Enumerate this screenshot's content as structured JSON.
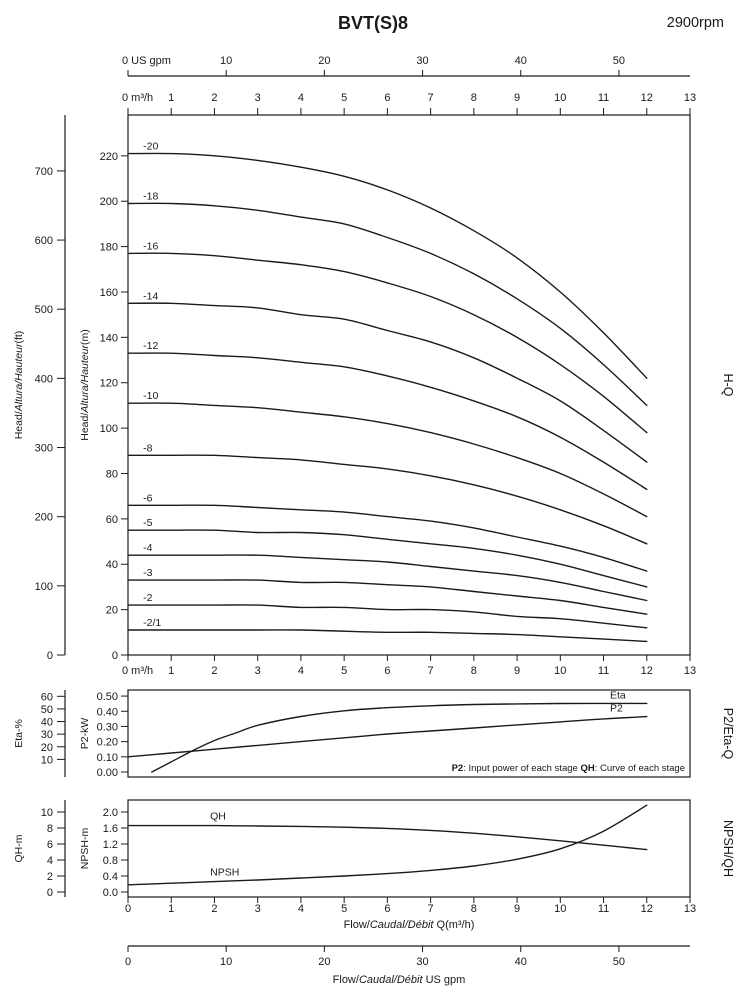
{
  "header": {
    "title": "BVT(S)8",
    "rpm": "2900rpm"
  },
  "colors": {
    "ink": "#1a1a1a",
    "background": "#ffffff"
  },
  "axes": {
    "gpm_top": {
      "zero_label": "0 US gpm",
      "ticks": [
        10,
        20,
        30,
        40,
        50
      ]
    },
    "m3h_top": {
      "zero_label": "0 m³/h",
      "ticks": [
        1,
        2,
        3,
        4,
        5,
        6,
        7,
        8,
        9,
        10,
        11,
        12,
        13
      ]
    },
    "m3h_mid": {
      "zero_label": "0 m³/h",
      "ticks": [
        1,
        2,
        3,
        4,
        5,
        6,
        7,
        8,
        9,
        10,
        11,
        12,
        13
      ]
    },
    "gpm_bottom": {
      "ticks": [
        0,
        10,
        20,
        30,
        40,
        50
      ],
      "label_parts": [
        {
          "text": "Flow/"
        },
        {
          "text": "Caudal/Débit",
          "italic": true
        },
        {
          "text": "  US gpm"
        }
      ]
    }
  },
  "chart_data": [
    {
      "type": "line",
      "name": "H-Q",
      "right_label": "H-Q",
      "xlim": [
        0,
        13
      ],
      "ylim_m": [
        0,
        238
      ],
      "ylabel_m_parts": [
        {
          "text": "Head/"
        },
        {
          "text": "Altura/Hauteur",
          "italic": true
        },
        {
          "text": "(m)"
        }
      ],
      "ylabel_ft_parts": [
        {
          "text": "Head/"
        },
        {
          "text": "Altura/Hauteur",
          "italic": true
        },
        {
          "text": "(ft)"
        }
      ],
      "yticks_m": [
        0,
        20,
        40,
        60,
        80,
        100,
        120,
        140,
        160,
        180,
        200,
        220
      ],
      "yticks_ft": [
        0,
        100,
        200,
        300,
        400,
        500,
        600,
        700
      ],
      "x": [
        0,
        1,
        2,
        3,
        4,
        5,
        6,
        7,
        8,
        9,
        10,
        11,
        12
      ],
      "series": [
        {
          "label": "-20",
          "values": [
            221,
            221,
            220,
            218,
            215,
            211,
            205,
            197,
            187,
            175,
            160,
            142,
            122
          ]
        },
        {
          "label": "-18",
          "values": [
            199,
            199,
            198,
            196,
            193,
            190,
            184,
            177,
            168,
            157,
            144,
            128,
            110
          ]
        },
        {
          "label": "-16",
          "values": [
            177,
            177,
            176,
            174,
            172,
            169,
            164,
            158,
            150,
            140,
            128,
            114,
            98
          ]
        },
        {
          "label": "-14",
          "values": [
            155,
            155,
            154,
            153,
            150,
            148,
            143,
            138,
            131,
            122,
            112,
            99,
            85
          ]
        },
        {
          "label": "-12",
          "values": [
            133,
            133,
            132,
            131,
            129,
            127,
            123,
            118,
            112,
            105,
            96,
            85,
            73
          ]
        },
        {
          "label": "-10",
          "values": [
            111,
            111,
            110,
            109,
            107,
            105,
            102,
            98,
            93,
            87,
            80,
            71,
            61
          ]
        },
        {
          "label": "-8",
          "values": [
            88,
            88,
            88,
            87,
            86,
            84,
            82,
            79,
            75,
            70,
            64,
            57,
            49
          ]
        },
        {
          "label": "-6",
          "values": [
            66,
            66,
            66,
            65,
            64,
            63,
            61,
            59,
            56,
            52,
            48,
            43,
            37
          ]
        },
        {
          "label": "-5",
          "values": [
            55,
            55,
            55,
            54,
            54,
            53,
            51,
            49,
            47,
            44,
            40,
            35,
            30
          ]
        },
        {
          "label": "-4",
          "values": [
            44,
            44,
            44,
            44,
            43,
            42,
            41,
            39,
            37,
            35,
            32,
            28,
            24
          ]
        },
        {
          "label": "-3",
          "values": [
            33,
            33,
            33,
            33,
            32,
            32,
            31,
            30,
            28,
            26,
            24,
            21,
            18
          ]
        },
        {
          "label": "-2",
          "values": [
            22,
            22,
            22,
            22,
            21,
            21,
            20,
            20,
            19,
            17,
            16,
            14,
            12
          ]
        },
        {
          "label": "-2/1",
          "values": [
            11,
            11,
            11,
            11,
            11,
            10.5,
            10,
            10,
            9.5,
            9,
            8,
            7,
            6
          ]
        }
      ]
    },
    {
      "type": "line",
      "name": "P2/Eta-Q",
      "right_label": "P2/Eta-Q",
      "eta": {
        "label": "Eta-%",
        "ticks": [
          10,
          20,
          30,
          40,
          50,
          60
        ],
        "lim": [
          0,
          65
        ]
      },
      "p2": {
        "label": "P2-kW",
        "ticks": [
          "0.00",
          "0.10",
          "0.20",
          "0.30",
          "0.40",
          "0.50"
        ],
        "lim": [
          0,
          0.54
        ]
      },
      "note_parts": [
        {
          "text": "P2",
          "bold": true
        },
        {
          "text": ": Input power of each stage  "
        },
        {
          "text": "QH",
          "bold": true
        },
        {
          "text": ": Curve of each stage"
        }
      ],
      "series": [
        {
          "label": "Eta",
          "axis": "eta",
          "x": [
            0.55,
            1,
            1.5,
            2,
            2.5,
            3,
            4,
            5,
            6,
            7,
            8,
            9,
            10,
            11,
            12
          ],
          "values": [
            0,
            8,
            17,
            25,
            31,
            37,
            44,
            48.5,
            51,
            52.5,
            53.5,
            54,
            54.3,
            54.4,
            54.4
          ]
        },
        {
          "label": "P2",
          "axis": "p2",
          "x": [
            0,
            1,
            2,
            3,
            4,
            5,
            6,
            7,
            8,
            9,
            10,
            11,
            12
          ],
          "values": [
            0.1,
            0.125,
            0.15,
            0.175,
            0.2,
            0.225,
            0.25,
            0.27,
            0.29,
            0.31,
            0.33,
            0.35,
            0.365
          ]
        }
      ]
    },
    {
      "type": "line",
      "name": "NPSH/QH",
      "right_label": "NPSH/QH",
      "qh": {
        "label": "QH-m",
        "ticks": [
          0,
          2,
          4,
          6,
          8,
          10
        ],
        "lim": [
          0,
          11.5
        ]
      },
      "npsh": {
        "label": "NPSH-m",
        "ticks": [
          "0.0",
          "0.4",
          "0.8",
          "1.2",
          "1.6",
          "2.0"
        ],
        "lim": [
          0,
          2.3
        ]
      },
      "xticks": [
        0,
        1,
        2,
        3,
        4,
        5,
        6,
        7,
        8,
        9,
        10,
        11,
        12,
        13
      ],
      "xlabel_parts": [
        {
          "text": "Flow/"
        },
        {
          "text": "Caudal/Débit",
          "italic": true
        },
        {
          "text": " Q(m³/h)"
        }
      ],
      "series": [
        {
          "label": "QH",
          "axis": "npsh",
          "x": [
            0,
            1,
            2,
            3,
            4,
            5,
            6,
            7,
            8,
            9,
            10,
            11,
            12
          ],
          "values": [
            1.66,
            1.66,
            1.66,
            1.65,
            1.64,
            1.62,
            1.59,
            1.54,
            1.47,
            1.38,
            1.28,
            1.17,
            1.06
          ]
        },
        {
          "label": "NPSH",
          "axis": "npsh",
          "x": [
            0,
            1,
            2,
            3,
            4,
            5,
            6,
            7,
            8,
            9,
            10,
            11,
            12
          ],
          "values": [
            0.18,
            0.22,
            0.26,
            0.3,
            0.35,
            0.4,
            0.46,
            0.54,
            0.65,
            0.82,
            1.08,
            1.52,
            2.17
          ]
        }
      ]
    }
  ]
}
